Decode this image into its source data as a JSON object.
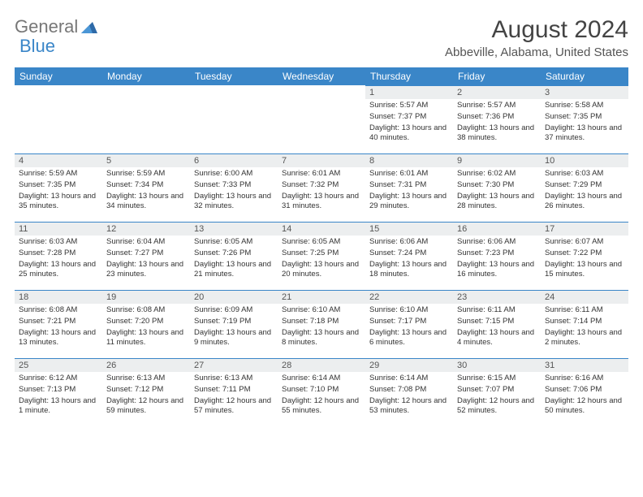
{
  "logo": {
    "part1": "General",
    "part2": "Blue"
  },
  "title": "August 2024",
  "location": "Abbeville, Alabama, United States",
  "header_bg": "#3a86c8",
  "daynum_bg": "#eceeef",
  "border_color": "#3a86c8",
  "days": [
    "Sunday",
    "Monday",
    "Tuesday",
    "Wednesday",
    "Thursday",
    "Friday",
    "Saturday"
  ],
  "weeks": [
    [
      null,
      null,
      null,
      null,
      {
        "n": "1",
        "sr": "5:57 AM",
        "ss": "7:37 PM",
        "dl": "13 hours and 40 minutes."
      },
      {
        "n": "2",
        "sr": "5:57 AM",
        "ss": "7:36 PM",
        "dl": "13 hours and 38 minutes."
      },
      {
        "n": "3",
        "sr": "5:58 AM",
        "ss": "7:35 PM",
        "dl": "13 hours and 37 minutes."
      }
    ],
    [
      {
        "n": "4",
        "sr": "5:59 AM",
        "ss": "7:35 PM",
        "dl": "13 hours and 35 minutes."
      },
      {
        "n": "5",
        "sr": "5:59 AM",
        "ss": "7:34 PM",
        "dl": "13 hours and 34 minutes."
      },
      {
        "n": "6",
        "sr": "6:00 AM",
        "ss": "7:33 PM",
        "dl": "13 hours and 32 minutes."
      },
      {
        "n": "7",
        "sr": "6:01 AM",
        "ss": "7:32 PM",
        "dl": "13 hours and 31 minutes."
      },
      {
        "n": "8",
        "sr": "6:01 AM",
        "ss": "7:31 PM",
        "dl": "13 hours and 29 minutes."
      },
      {
        "n": "9",
        "sr": "6:02 AM",
        "ss": "7:30 PM",
        "dl": "13 hours and 28 minutes."
      },
      {
        "n": "10",
        "sr": "6:03 AM",
        "ss": "7:29 PM",
        "dl": "13 hours and 26 minutes."
      }
    ],
    [
      {
        "n": "11",
        "sr": "6:03 AM",
        "ss": "7:28 PM",
        "dl": "13 hours and 25 minutes."
      },
      {
        "n": "12",
        "sr": "6:04 AM",
        "ss": "7:27 PM",
        "dl": "13 hours and 23 minutes."
      },
      {
        "n": "13",
        "sr": "6:05 AM",
        "ss": "7:26 PM",
        "dl": "13 hours and 21 minutes."
      },
      {
        "n": "14",
        "sr": "6:05 AM",
        "ss": "7:25 PM",
        "dl": "13 hours and 20 minutes."
      },
      {
        "n": "15",
        "sr": "6:06 AM",
        "ss": "7:24 PM",
        "dl": "13 hours and 18 minutes."
      },
      {
        "n": "16",
        "sr": "6:06 AM",
        "ss": "7:23 PM",
        "dl": "13 hours and 16 minutes."
      },
      {
        "n": "17",
        "sr": "6:07 AM",
        "ss": "7:22 PM",
        "dl": "13 hours and 15 minutes."
      }
    ],
    [
      {
        "n": "18",
        "sr": "6:08 AM",
        "ss": "7:21 PM",
        "dl": "13 hours and 13 minutes."
      },
      {
        "n": "19",
        "sr": "6:08 AM",
        "ss": "7:20 PM",
        "dl": "13 hours and 11 minutes."
      },
      {
        "n": "20",
        "sr": "6:09 AM",
        "ss": "7:19 PM",
        "dl": "13 hours and 9 minutes."
      },
      {
        "n": "21",
        "sr": "6:10 AM",
        "ss": "7:18 PM",
        "dl": "13 hours and 8 minutes."
      },
      {
        "n": "22",
        "sr": "6:10 AM",
        "ss": "7:17 PM",
        "dl": "13 hours and 6 minutes."
      },
      {
        "n": "23",
        "sr": "6:11 AM",
        "ss": "7:15 PM",
        "dl": "13 hours and 4 minutes."
      },
      {
        "n": "24",
        "sr": "6:11 AM",
        "ss": "7:14 PM",
        "dl": "13 hours and 2 minutes."
      }
    ],
    [
      {
        "n": "25",
        "sr": "6:12 AM",
        "ss": "7:13 PM",
        "dl": "13 hours and 1 minute."
      },
      {
        "n": "26",
        "sr": "6:13 AM",
        "ss": "7:12 PM",
        "dl": "12 hours and 59 minutes."
      },
      {
        "n": "27",
        "sr": "6:13 AM",
        "ss": "7:11 PM",
        "dl": "12 hours and 57 minutes."
      },
      {
        "n": "28",
        "sr": "6:14 AM",
        "ss": "7:10 PM",
        "dl": "12 hours and 55 minutes."
      },
      {
        "n": "29",
        "sr": "6:14 AM",
        "ss": "7:08 PM",
        "dl": "12 hours and 53 minutes."
      },
      {
        "n": "30",
        "sr": "6:15 AM",
        "ss": "7:07 PM",
        "dl": "12 hours and 52 minutes."
      },
      {
        "n": "31",
        "sr": "6:16 AM",
        "ss": "7:06 PM",
        "dl": "12 hours and 50 minutes."
      }
    ]
  ],
  "labels": {
    "sunrise": "Sunrise:",
    "sunset": "Sunset:",
    "daylight": "Daylight:"
  }
}
